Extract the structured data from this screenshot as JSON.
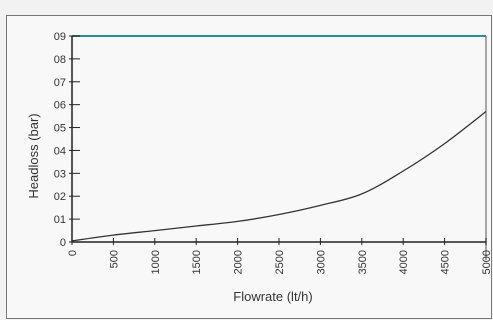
{
  "chart_data": {
    "type": "line",
    "xlabel": "Flowrate (lt/h)",
    "ylabel": "Headloss (bar)",
    "xlim": [
      0,
      5000
    ],
    "ylim": [
      0,
      0.9
    ],
    "x_ticks": [
      "0",
      "500",
      "1000",
      "1500",
      "2000",
      "2500",
      "3000",
      "3500",
      "4000",
      "4500",
      "5000"
    ],
    "y_ticks": [
      "0",
      "01",
      "02",
      "03",
      "04",
      "05",
      "06",
      "07",
      "08",
      "09"
    ],
    "series": [
      {
        "x": [
          0,
          500,
          1000,
          1500,
          2000,
          2500,
          3000,
          3500,
          4000,
          4500,
          5000
        ],
        "y": [
          0.005,
          0.03,
          0.05,
          0.07,
          0.09,
          0.12,
          0.16,
          0.21,
          0.31,
          0.43,
          0.57
        ]
      }
    ],
    "colors": {
      "line": "#333333",
      "axis": "#222222",
      "frame_top": "#2d8f93",
      "frame_right": "#8a8a8a"
    }
  }
}
